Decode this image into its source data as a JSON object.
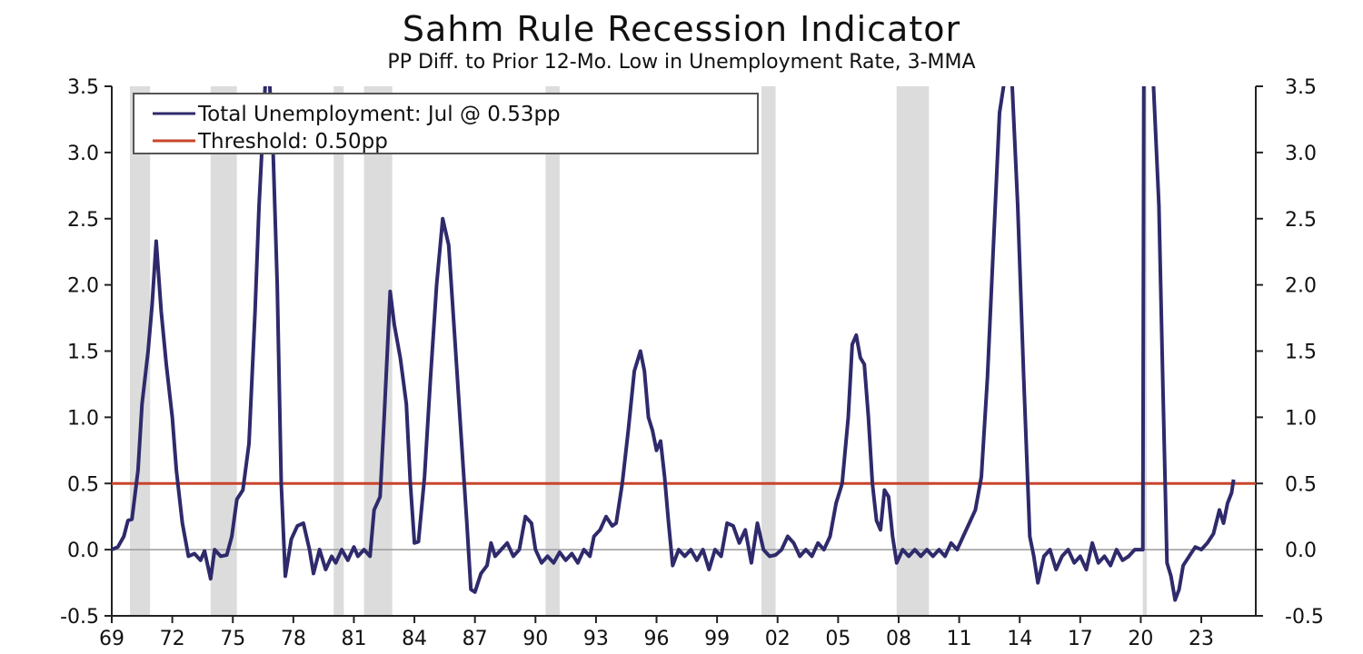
{
  "chart_data": {
    "type": "line",
    "title": "Sahm Rule Recession Indicator",
    "subtitle": "PP Diff. to Prior 12-Mo. Low in Unemployment Rate, 3-MMA",
    "xlabel": "",
    "ylabel": "",
    "xlim": [
      1969.0,
      2025.7
    ],
    "ylim": [
      -0.5,
      3.5
    ],
    "y_ticks": [
      -0.5,
      0.0,
      0.5,
      1.0,
      1.5,
      2.0,
      2.5,
      3.0,
      3.5
    ],
    "y_tick_labels": [
      "-0.5",
      "0.0",
      "0.5",
      "1.0",
      "1.5",
      "2.0",
      "2.5",
      "3.0",
      "3.5"
    ],
    "x_ticks": [
      1969,
      1972,
      1975,
      1978,
      1981,
      1984,
      1987,
      1990,
      1993,
      1996,
      1999,
      2002,
      2005,
      2008,
      2011,
      2014,
      2017,
      2020,
      2023
    ],
    "x_tick_labels": [
      "69",
      "72",
      "75",
      "78",
      "81",
      "84",
      "87",
      "90",
      "93",
      "96",
      "99",
      "02",
      "05",
      "08",
      "11",
      "14",
      "17",
      "20",
      "23"
    ],
    "grid": false,
    "legend_position": "top-left",
    "recession_shading": [
      [
        1969.9,
        1970.9
      ],
      [
        1973.9,
        1975.2
      ],
      [
        1980.0,
        1980.5
      ],
      [
        1981.5,
        1982.9
      ],
      [
        1990.5,
        1991.2
      ],
      [
        2001.2,
        2001.9
      ],
      [
        2007.9,
        2009.5
      ],
      [
        2020.1,
        2020.3
      ]
    ],
    "series": [
      {
        "name": "Total Unemployment: Jul @ 0.53pp",
        "color": "#2e2a6b",
        "points": [
          [
            1969.0,
            0.0
          ],
          [
            1969.3,
            0.02
          ],
          [
            1969.6,
            0.1
          ],
          [
            1969.8,
            0.22
          ],
          [
            1970.0,
            0.23
          ],
          [
            1970.3,
            0.6
          ],
          [
            1970.5,
            1.1
          ],
          [
            1970.8,
            1.5
          ],
          [
            1971.0,
            1.85
          ],
          [
            1971.2,
            2.33
          ],
          [
            1971.45,
            1.8
          ],
          [
            1971.7,
            1.4
          ],
          [
            1972.0,
            1.0
          ],
          [
            1972.2,
            0.6
          ],
          [
            1972.5,
            0.2
          ],
          [
            1972.8,
            -0.05
          ],
          [
            1973.1,
            -0.03
          ],
          [
            1973.4,
            -0.08
          ],
          [
            1973.6,
            -0.01
          ],
          [
            1973.9,
            -0.22
          ],
          [
            1974.1,
            0.0
          ],
          [
            1974.4,
            -0.05
          ],
          [
            1974.7,
            -0.04
          ],
          [
            1974.95,
            0.1
          ],
          [
            1975.2,
            0.38
          ],
          [
            1975.5,
            0.45
          ],
          [
            1975.8,
            0.8
          ],
          [
            1976.1,
            1.8
          ],
          [
            1976.3,
            2.6
          ],
          [
            1976.6,
            3.5
          ],
          [
            1976.8,
            3.6
          ],
          [
            1977.0,
            3.0
          ],
          [
            1977.2,
            2.0
          ],
          [
            1977.4,
            0.5
          ],
          [
            1977.6,
            -0.2
          ],
          [
            1977.9,
            0.08
          ],
          [
            1978.2,
            0.18
          ],
          [
            1978.5,
            0.2
          ],
          [
            1978.8,
            0.0
          ],
          [
            1979.0,
            -0.18
          ],
          [
            1979.3,
            0.0
          ],
          [
            1979.6,
            -0.15
          ],
          [
            1979.9,
            -0.05
          ],
          [
            1980.1,
            -0.1
          ],
          [
            1980.4,
            0.0
          ],
          [
            1980.7,
            -0.08
          ],
          [
            1981.0,
            0.02
          ],
          [
            1981.2,
            -0.05
          ],
          [
            1981.5,
            0.0
          ],
          [
            1981.8,
            -0.05
          ],
          [
            1982.0,
            0.3
          ],
          [
            1982.3,
            0.4
          ],
          [
            1982.5,
            1.0
          ],
          [
            1982.8,
            1.95
          ],
          [
            1983.0,
            1.7
          ],
          [
            1983.3,
            1.45
          ],
          [
            1983.6,
            1.1
          ],
          [
            1983.8,
            0.5
          ],
          [
            1984.0,
            0.05
          ],
          [
            1984.2,
            0.06
          ],
          [
            1984.5,
            0.55
          ],
          [
            1984.8,
            1.3
          ],
          [
            1985.1,
            2.0
          ],
          [
            1985.4,
            2.5
          ],
          [
            1985.7,
            2.3
          ],
          [
            1986.0,
            1.6
          ],
          [
            1986.3,
            0.9
          ],
          [
            1986.6,
            0.2
          ],
          [
            1986.8,
            -0.3
          ],
          [
            1987.0,
            -0.32
          ],
          [
            1987.3,
            -0.18
          ],
          [
            1987.6,
            -0.12
          ],
          [
            1987.8,
            0.05
          ],
          [
            1988.0,
            -0.05
          ],
          [
            1988.3,
            0.0
          ],
          [
            1988.6,
            0.05
          ],
          [
            1988.9,
            -0.05
          ],
          [
            1989.2,
            0.0
          ],
          [
            1989.5,
            0.25
          ],
          [
            1989.8,
            0.2
          ],
          [
            1990.0,
            0.0
          ],
          [
            1990.3,
            -0.1
          ],
          [
            1990.6,
            -0.05
          ],
          [
            1990.9,
            -0.1
          ],
          [
            1991.2,
            -0.02
          ],
          [
            1991.5,
            -0.08
          ],
          [
            1991.8,
            -0.03
          ],
          [
            1992.1,
            -0.1
          ],
          [
            1992.4,
            0.0
          ],
          [
            1992.7,
            -0.05
          ],
          [
            1992.9,
            0.1
          ],
          [
            1993.2,
            0.15
          ],
          [
            1993.5,
            0.25
          ],
          [
            1993.8,
            0.18
          ],
          [
            1994.0,
            0.2
          ],
          [
            1994.3,
            0.5
          ],
          [
            1994.6,
            0.9
          ],
          [
            1994.9,
            1.35
          ],
          [
            1995.2,
            1.5
          ],
          [
            1995.4,
            1.35
          ],
          [
            1995.6,
            1.0
          ],
          [
            1995.8,
            0.9
          ],
          [
            1996.0,
            0.75
          ],
          [
            1996.2,
            0.82
          ],
          [
            1996.4,
            0.55
          ],
          [
            1996.6,
            0.2
          ],
          [
            1996.8,
            -0.12
          ],
          [
            1997.1,
            0.0
          ],
          [
            1997.4,
            -0.05
          ],
          [
            1997.7,
            0.0
          ],
          [
            1998.0,
            -0.08
          ],
          [
            1998.3,
            0.0
          ],
          [
            1998.6,
            -0.15
          ],
          [
            1998.9,
            0.0
          ],
          [
            1999.2,
            -0.05
          ],
          [
            1999.5,
            0.2
          ],
          [
            1999.8,
            0.18
          ],
          [
            2000.1,
            0.05
          ],
          [
            2000.4,
            0.15
          ],
          [
            2000.7,
            -0.1
          ],
          [
            2001.0,
            0.2
          ],
          [
            2001.3,
            0.0
          ],
          [
            2001.6,
            -0.05
          ],
          [
            2001.9,
            -0.04
          ],
          [
            2002.2,
            0.0
          ],
          [
            2002.5,
            0.1
          ],
          [
            2002.8,
            0.05
          ],
          [
            2003.1,
            -0.05
          ],
          [
            2003.4,
            0.0
          ],
          [
            2003.7,
            -0.05
          ],
          [
            2004.0,
            0.05
          ],
          [
            2004.3,
            0.0
          ],
          [
            2004.6,
            0.1
          ],
          [
            2004.9,
            0.35
          ],
          [
            2005.2,
            0.5
          ],
          [
            2005.5,
            1.0
          ],
          [
            2005.7,
            1.55
          ],
          [
            2005.9,
            1.62
          ],
          [
            2006.1,
            1.45
          ],
          [
            2006.3,
            1.4
          ],
          [
            2006.5,
            1.0
          ],
          [
            2006.7,
            0.5
          ],
          [
            2006.9,
            0.22
          ],
          [
            2007.1,
            0.15
          ],
          [
            2007.3,
            0.45
          ],
          [
            2007.5,
            0.4
          ],
          [
            2007.7,
            0.1
          ],
          [
            2007.9,
            -0.1
          ],
          [
            2008.2,
            0.0
          ],
          [
            2008.5,
            -0.05
          ],
          [
            2008.8,
            0.0
          ],
          [
            2009.1,
            -0.05
          ],
          [
            2009.4,
            0.0
          ],
          [
            2009.7,
            -0.05
          ],
          [
            2010.0,
            0.0
          ],
          [
            2010.3,
            -0.05
          ],
          [
            2010.6,
            0.05
          ],
          [
            2010.9,
            0.0
          ],
          [
            2011.2,
            0.1
          ],
          [
            2011.5,
            0.2
          ],
          [
            2011.8,
            0.3
          ],
          [
            2012.1,
            0.55
          ],
          [
            2012.4,
            1.3
          ],
          [
            2012.7,
            2.3
          ],
          [
            2013.0,
            3.3
          ],
          [
            2013.3,
            3.6
          ],
          [
            2013.6,
            3.6
          ],
          [
            2013.9,
            2.6
          ],
          [
            2014.2,
            1.3
          ],
          [
            2014.5,
            0.1
          ],
          [
            2014.7,
            -0.05
          ],
          [
            2014.9,
            -0.25
          ],
          [
            2015.2,
            -0.05
          ],
          [
            2015.5,
            0.0
          ],
          [
            2015.8,
            -0.15
          ],
          [
            2016.1,
            -0.05
          ],
          [
            2016.4,
            0.0
          ],
          [
            2016.7,
            -0.1
          ],
          [
            2017.0,
            -0.05
          ],
          [
            2017.3,
            -0.15
          ],
          [
            2017.6,
            0.05
          ],
          [
            2017.9,
            -0.1
          ],
          [
            2018.2,
            -0.05
          ],
          [
            2018.5,
            -0.12
          ],
          [
            2018.8,
            0.0
          ],
          [
            2019.1,
            -0.08
          ],
          [
            2019.4,
            -0.05
          ],
          [
            2019.7,
            0.0
          ],
          [
            2019.95,
            0.0
          ],
          [
            2020.1,
            0.0
          ],
          [
            2020.15,
            3.6
          ],
          [
            2020.6,
            3.6
          ],
          [
            2020.9,
            2.6
          ],
          [
            2021.1,
            1.2
          ],
          [
            2021.3,
            -0.1
          ],
          [
            2021.5,
            -0.2
          ],
          [
            2021.7,
            -0.38
          ],
          [
            2021.9,
            -0.3
          ],
          [
            2022.1,
            -0.12
          ],
          [
            2022.4,
            -0.05
          ],
          [
            2022.7,
            0.02
          ],
          [
            2023.0,
            0.0
          ],
          [
            2023.3,
            0.05
          ],
          [
            2023.6,
            0.12
          ],
          [
            2023.9,
            0.3
          ],
          [
            2024.1,
            0.2
          ],
          [
            2024.3,
            0.35
          ],
          [
            2024.5,
            0.43
          ],
          [
            2024.6,
            0.53
          ]
        ]
      },
      {
        "name": "Threshold: 0.50pp",
        "color": "#c8452c",
        "points": [
          [
            1969.0,
            0.5
          ],
          [
            2025.7,
            0.5
          ]
        ]
      }
    ]
  }
}
